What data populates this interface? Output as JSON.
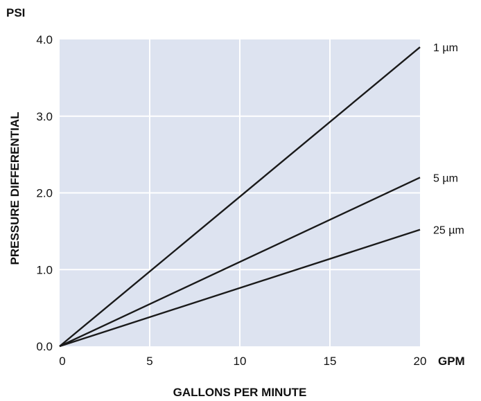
{
  "chart_data": {
    "type": "line",
    "xlabel": "GALLONS PER MINUTE",
    "ylabel": "PRESSURE  DIFFERENTIAL",
    "x_unit": "GPM",
    "y_unit": "PSI",
    "xlim": [
      0,
      20
    ],
    "ylim": [
      0,
      4.0
    ],
    "x_ticks": [
      "0",
      "5",
      "10",
      "15",
      "20"
    ],
    "y_ticks": [
      "0.0",
      "1.0",
      "2.0",
      "3.0",
      "4.0"
    ],
    "grid": true,
    "legend": "labels at line ends, right",
    "colors": {
      "plot_background": "#dde3f0",
      "grid": "#ffffff",
      "line": "#1a1a1a"
    },
    "series": [
      {
        "name": "1 µm",
        "x": [
          0,
          20
        ],
        "y": [
          0,
          3.9
        ]
      },
      {
        "name": "5 µm",
        "x": [
          0,
          20
        ],
        "y": [
          0,
          2.2
        ]
      },
      {
        "name": "25 µm",
        "x": [
          0,
          20
        ],
        "y": [
          0,
          1.52
        ]
      }
    ]
  }
}
